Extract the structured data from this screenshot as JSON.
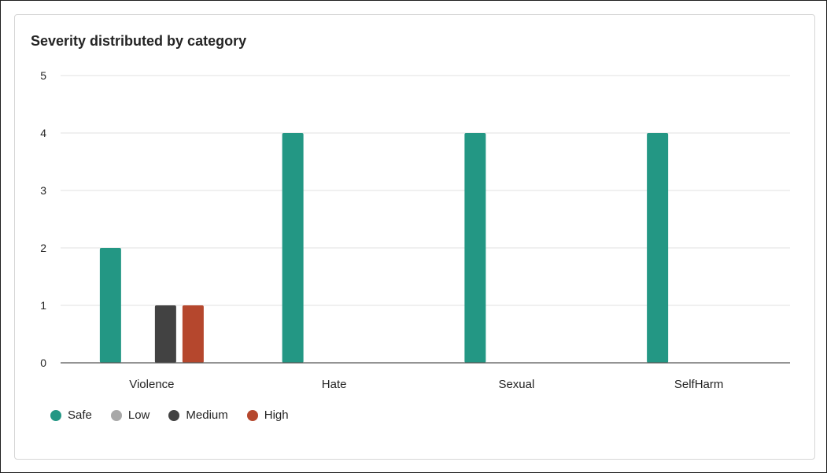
{
  "chart_data": {
    "type": "bar",
    "title": "Severity distributed by category",
    "categories": [
      "Violence",
      "Hate",
      "Sexual",
      "SelfHarm"
    ],
    "series": [
      {
        "name": "Safe",
        "color": "#239784",
        "values": [
          2,
          4,
          4,
          4
        ]
      },
      {
        "name": "Low",
        "color": "#a8a8a8",
        "values": [
          0,
          0,
          0,
          0
        ]
      },
      {
        "name": "Medium",
        "color": "#424242",
        "values": [
          1,
          0,
          0,
          0
        ]
      },
      {
        "name": "High",
        "color": "#b5472d",
        "values": [
          1,
          0,
          0,
          0
        ]
      }
    ],
    "ylim": [
      0,
      5
    ],
    "yticks": [
      0,
      1,
      2,
      3,
      4,
      5
    ],
    "grid": true,
    "legend_position": "bottom-left"
  }
}
